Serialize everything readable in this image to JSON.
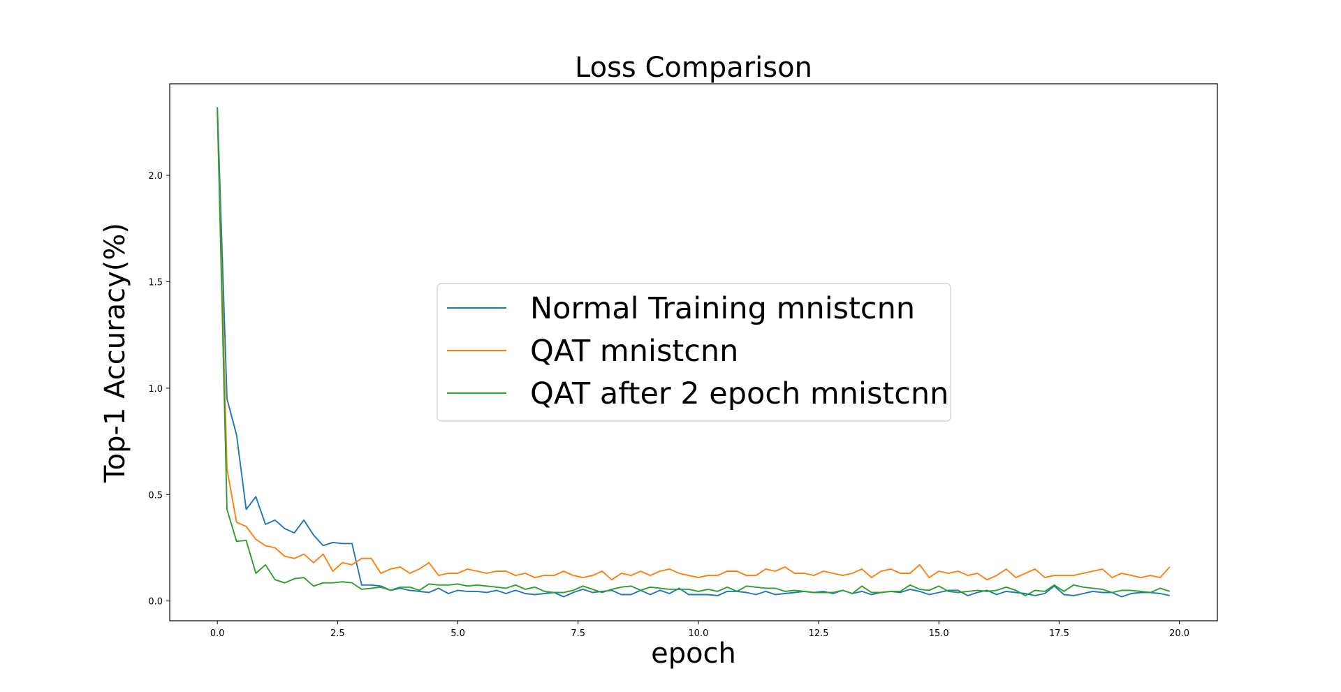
{
  "chart_data": {
    "type": "line",
    "title": "Loss Comparison",
    "xlabel": "epoch",
    "ylabel": "Top-1 Accuracy(%)",
    "xlim": [
      -0.99,
      20.79
    ],
    "ylim": [
      -0.093,
      2.43
    ],
    "xticks": [
      0.0,
      2.5,
      5.0,
      7.5,
      10.0,
      12.5,
      15.0,
      17.5,
      20.0
    ],
    "xtick_labels": [
      "0.0",
      "2.5",
      "5.0",
      "7.5",
      "10.0",
      "12.5",
      "15.0",
      "17.5",
      "20.0"
    ],
    "yticks": [
      0.0,
      0.5,
      1.0,
      1.5,
      2.0
    ],
    "ytick_labels": [
      "0.0",
      "0.5",
      "1.0",
      "1.5",
      "2.0"
    ],
    "grid": false,
    "legend_position": "center",
    "x_start": 0.0,
    "x_step": 0.2,
    "series": [
      {
        "name": "Normal Training mnistcnn",
        "color": "#1f77b4",
        "values": [
          2.32,
          0.95,
          0.78,
          0.43,
          0.49,
          0.36,
          0.38,
          0.34,
          0.32,
          0.38,
          0.31,
          0.26,
          0.275,
          0.27,
          0.27,
          0.075,
          0.075,
          0.07,
          0.05,
          0.06,
          0.05,
          0.045,
          0.04,
          0.06,
          0.035,
          0.05,
          0.045,
          0.045,
          0.04,
          0.05,
          0.035,
          0.05,
          0.035,
          0.03,
          0.035,
          0.04,
          0.02,
          0.04,
          0.055,
          0.04,
          0.045,
          0.05,
          0.03,
          0.03,
          0.05,
          0.03,
          0.05,
          0.035,
          0.06,
          0.03,
          0.03,
          0.03,
          0.025,
          0.045,
          0.045,
          0.04,
          0.03,
          0.045,
          0.03,
          0.035,
          0.04,
          0.045,
          0.04,
          0.045,
          0.035,
          0.05,
          0.035,
          0.045,
          0.03,
          0.04,
          0.045,
          0.04,
          0.055,
          0.045,
          0.03,
          0.04,
          0.05,
          0.05,
          0.025,
          0.04,
          0.05,
          0.03,
          0.045,
          0.04,
          0.035,
          0.025,
          0.035,
          0.07,
          0.03,
          0.025,
          0.035,
          0.045,
          0.04,
          0.04,
          0.02,
          0.035,
          0.04,
          0.04,
          0.035,
          0.025
        ]
      },
      {
        "name": "QAT mnistcnn",
        "color": "#ff7f0e",
        "values": [
          2.3,
          0.62,
          0.37,
          0.35,
          0.29,
          0.26,
          0.25,
          0.21,
          0.2,
          0.22,
          0.18,
          0.22,
          0.14,
          0.18,
          0.17,
          0.2,
          0.2,
          0.13,
          0.15,
          0.16,
          0.13,
          0.15,
          0.18,
          0.12,
          0.13,
          0.13,
          0.15,
          0.14,
          0.13,
          0.14,
          0.14,
          0.12,
          0.13,
          0.11,
          0.12,
          0.12,
          0.14,
          0.12,
          0.11,
          0.12,
          0.14,
          0.1,
          0.13,
          0.12,
          0.14,
          0.12,
          0.14,
          0.15,
          0.13,
          0.12,
          0.11,
          0.12,
          0.12,
          0.14,
          0.14,
          0.12,
          0.12,
          0.15,
          0.14,
          0.16,
          0.13,
          0.13,
          0.12,
          0.14,
          0.13,
          0.12,
          0.13,
          0.15,
          0.11,
          0.14,
          0.15,
          0.13,
          0.13,
          0.17,
          0.11,
          0.14,
          0.13,
          0.14,
          0.12,
          0.13,
          0.1,
          0.12,
          0.15,
          0.11,
          0.13,
          0.15,
          0.11,
          0.12,
          0.12,
          0.12,
          0.13,
          0.14,
          0.15,
          0.11,
          0.13,
          0.12,
          0.11,
          0.12,
          0.11,
          0.16
        ]
      },
      {
        "name": "QAT after 2 epoch mnistcnn",
        "color": "#2ca02c",
        "values": [
          2.31,
          0.43,
          0.28,
          0.285,
          0.13,
          0.17,
          0.1,
          0.085,
          0.105,
          0.11,
          0.07,
          0.085,
          0.085,
          0.09,
          0.085,
          0.055,
          0.06,
          0.065,
          0.05,
          0.065,
          0.065,
          0.05,
          0.08,
          0.075,
          0.075,
          0.08,
          0.07,
          0.075,
          0.07,
          0.065,
          0.06,
          0.075,
          0.055,
          0.065,
          0.045,
          0.04,
          0.04,
          0.05,
          0.07,
          0.055,
          0.04,
          0.055,
          0.065,
          0.07,
          0.05,
          0.065,
          0.06,
          0.055,
          0.055,
          0.055,
          0.045,
          0.055,
          0.045,
          0.065,
          0.045,
          0.07,
          0.065,
          0.06,
          0.06,
          0.045,
          0.05,
          0.045,
          0.04,
          0.04,
          0.04,
          0.05,
          0.035,
          0.07,
          0.04,
          0.04,
          0.045,
          0.045,
          0.075,
          0.055,
          0.05,
          0.07,
          0.045,
          0.04,
          0.045,
          0.05,
          0.045,
          0.05,
          0.065,
          0.05,
          0.025,
          0.05,
          0.045,
          0.075,
          0.045,
          0.075,
          0.065,
          0.06,
          0.055,
          0.04,
          0.05,
          0.05,
          0.045,
          0.04,
          0.06,
          0.045
        ]
      }
    ]
  }
}
